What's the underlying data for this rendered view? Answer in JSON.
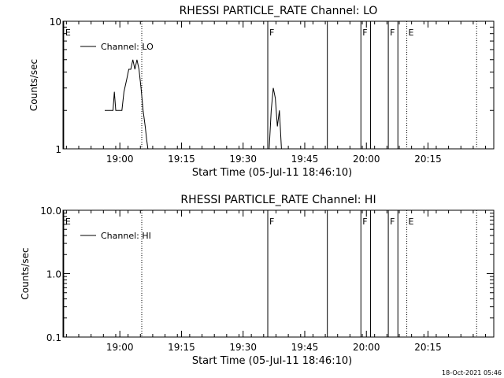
{
  "footer": {
    "timestamp": "18-Oct-2021 05:46"
  },
  "colors": {
    "background": "#ffffff",
    "foreground": "#000000"
  },
  "chart_data": [
    {
      "type": "line",
      "title": "RHESSI PARTICLE_RATE Channel: LO",
      "xlabel": "Start Time (05-Jul-11 18:46:10)",
      "ylabel": "Counts/sec",
      "y_scale": "log",
      "ylim": [
        1,
        10
      ],
      "y_ticks": [
        1,
        10
      ],
      "y_tick_labels": [
        "1",
        "10"
      ],
      "xlim": [
        "18:46:10",
        "20:31:00"
      ],
      "x_ticks": [
        "19:00",
        "19:15",
        "19:30",
        "19:45",
        "20:00",
        "20:15"
      ],
      "grid": false,
      "legend": {
        "position": "top-left",
        "entries": [
          "Channel: LO"
        ]
      },
      "series": [
        {
          "name": "Channel: LO",
          "segments": [
            [
              [
                "18:56:20",
                2.0
              ],
              [
                "18:58:20",
                2.0
              ],
              [
                "18:58:40",
                2.8
              ],
              [
                "18:59:00",
                2.0
              ],
              [
                "19:00:30",
                2.0
              ],
              [
                "19:01:00",
                2.8
              ],
              [
                "19:01:40",
                3.5
              ],
              [
                "19:02:10",
                4.2
              ],
              [
                "19:02:40",
                4.2
              ],
              [
                "19:03:10",
                5.0
              ],
              [
                "19:03:40",
                4.2
              ],
              [
                "19:04:10",
                5.0
              ],
              [
                "19:04:40",
                4.2
              ],
              [
                "19:05:10",
                3.0
              ],
              [
                "19:05:40",
                2.0
              ],
              [
                "19:06:10",
                1.5
              ],
              [
                "19:06:30",
                1.2
              ],
              [
                "19:06:50",
                1.0
              ]
            ],
            [
              [
                "19:36:20",
                1.0
              ],
              [
                "19:36:50",
                2.0
              ],
              [
                "19:37:20",
                3.0
              ],
              [
                "19:37:50",
                2.5
              ],
              [
                "19:38:20",
                1.5
              ],
              [
                "19:38:50",
                2.0
              ],
              [
                "19:39:20",
                1.0
              ]
            ]
          ]
        }
      ],
      "markers": [
        {
          "time": "18:46:20",
          "label": "E",
          "style": "solid"
        },
        {
          "time": "19:05:20",
          "label": "",
          "style": "dotted"
        },
        {
          "time": "19:36:00",
          "label": "F",
          "style": "solid"
        },
        {
          "time": "19:50:30",
          "label": "",
          "style": "solid"
        },
        {
          "time": "19:58:40",
          "label": "F",
          "style": "solid"
        },
        {
          "time": "20:01:00",
          "label": "",
          "style": "solid"
        },
        {
          "time": "20:05:20",
          "label": "F",
          "style": "solid"
        },
        {
          "time": "20:07:40",
          "label": "",
          "style": "solid"
        },
        {
          "time": "20:09:50",
          "label": "E",
          "style": "dotted"
        },
        {
          "time": "20:26:50",
          "label": "",
          "style": "dotted"
        }
      ]
    },
    {
      "type": "line",
      "title": "RHESSI PARTICLE_RATE Channel: HI",
      "xlabel": "Start Time (05-Jul-11 18:46:10)",
      "ylabel": "Counts/sec",
      "y_scale": "log",
      "ylim": [
        0.1,
        10
      ],
      "y_ticks": [
        0.1,
        1,
        10
      ],
      "y_tick_labels": [
        "0.1",
        "1.0",
        "10.0"
      ],
      "xlim": [
        "18:46:10",
        "20:31:00"
      ],
      "x_ticks": [
        "19:00",
        "19:15",
        "19:30",
        "19:45",
        "20:00",
        "20:15"
      ],
      "grid": false,
      "legend": {
        "position": "top-left",
        "entries": [
          "Channel: HI"
        ]
      },
      "series": [
        {
          "name": "Channel: HI",
          "segments": []
        }
      ],
      "markers": [
        {
          "time": "18:46:20",
          "label": "E",
          "style": "solid"
        },
        {
          "time": "19:05:20",
          "label": "",
          "style": "dotted"
        },
        {
          "time": "19:36:00",
          "label": "F",
          "style": "solid"
        },
        {
          "time": "19:50:30",
          "label": "",
          "style": "solid"
        },
        {
          "time": "19:58:40",
          "label": "F",
          "style": "solid"
        },
        {
          "time": "20:01:00",
          "label": "",
          "style": "solid"
        },
        {
          "time": "20:05:20",
          "label": "F",
          "style": "solid"
        },
        {
          "time": "20:07:40",
          "label": "",
          "style": "solid"
        },
        {
          "time": "20:09:50",
          "label": "E",
          "style": "dotted"
        },
        {
          "time": "20:26:50",
          "label": "",
          "style": "dotted"
        }
      ]
    }
  ]
}
